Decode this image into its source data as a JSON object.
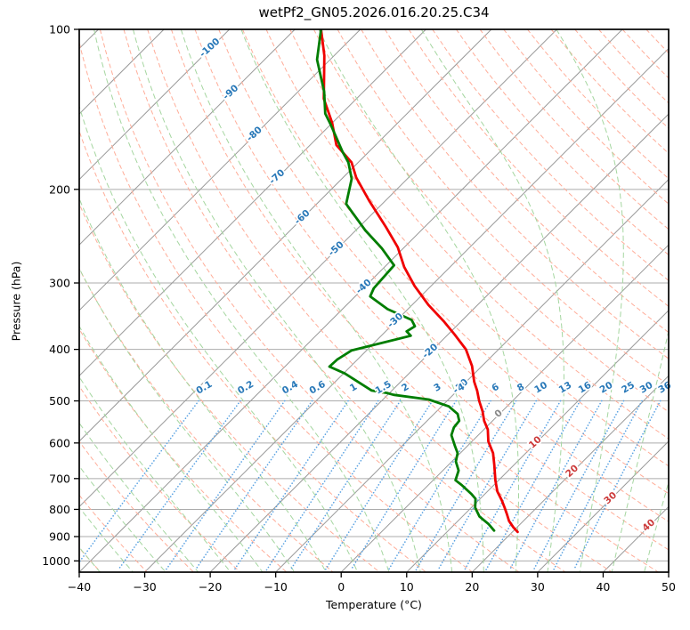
{
  "title": "wetPf2_GN05.2026.016.20.25.C34",
  "axes": {
    "xlabel": "Temperature (°C)",
    "ylabel": "Pressure (hPa)",
    "x_ticks": [
      {
        "value": -40,
        "label": "−40"
      },
      {
        "value": -30,
        "label": "−30"
      },
      {
        "value": -20,
        "label": "−20"
      },
      {
        "value": -10,
        "label": "−10"
      },
      {
        "value": 0,
        "label": "0"
      },
      {
        "value": 10,
        "label": "10"
      },
      {
        "value": 20,
        "label": "20"
      },
      {
        "value": 30,
        "label": "30"
      },
      {
        "value": 40,
        "label": "40"
      },
      {
        "value": 50,
        "label": "50"
      }
    ],
    "y_ticks": [
      {
        "value": 100,
        "label": "100"
      },
      {
        "value": 200,
        "label": "200"
      },
      {
        "value": 300,
        "label": "300"
      },
      {
        "value": 400,
        "label": "400"
      },
      {
        "value": 500,
        "label": "500"
      },
      {
        "value": 600,
        "label": "600"
      },
      {
        "value": 700,
        "label": "700"
      },
      {
        "value": 800,
        "label": "800"
      },
      {
        "value": 900,
        "label": "900"
      },
      {
        "value": 1000,
        "label": "1000"
      }
    ]
  },
  "chart_data": {
    "type": "line",
    "subtype": "skewT-logP-sounding",
    "title": "wetPf2_GN05.2026.016.20.25.C34",
    "xlabel": "Temperature (°C)",
    "ylabel": "Pressure (hPa)",
    "xlim": [
      -40,
      50
    ],
    "pressure_range": [
      100,
      1050
    ],
    "skew": "45deg",
    "grid": true,
    "series": [
      {
        "name": "temperature",
        "color": "#f00000",
        "points": [
          [
            100,
            -86
          ],
          [
            112,
            -81.5
          ],
          [
            135,
            -75
          ],
          [
            150,
            -70
          ],
          [
            165,
            -66
          ],
          [
            178,
            -61
          ],
          [
            190,
            -58
          ],
          [
            210,
            -52.5
          ],
          [
            235,
            -46
          ],
          [
            257,
            -41
          ],
          [
            280,
            -37
          ],
          [
            304,
            -32.5
          ],
          [
            330,
            -27.5
          ],
          [
            355,
            -22.5
          ],
          [
            375,
            -19
          ],
          [
            400,
            -15
          ],
          [
            430,
            -11.5
          ],
          [
            460,
            -8.8
          ],
          [
            478,
            -7
          ],
          [
            500,
            -5.1
          ],
          [
            523,
            -3
          ],
          [
            545,
            -1.3
          ],
          [
            566,
            0.6
          ],
          [
            596,
            2.5
          ],
          [
            627,
            5
          ],
          [
            660,
            7
          ],
          [
            705,
            9.5
          ],
          [
            740,
            11.5
          ],
          [
            770,
            13.6
          ],
          [
            794,
            15.1
          ],
          [
            816,
            16.4
          ],
          [
            841,
            17.8
          ],
          [
            864,
            19.4
          ],
          [
            882,
            20.8
          ]
        ]
      },
      {
        "name": "dewpoint",
        "color": "#007d00",
        "points": [
          [
            100,
            -86
          ],
          [
            114,
            -82
          ],
          [
            131,
            -76
          ],
          [
            144,
            -72.5
          ],
          [
            151,
            -70
          ],
          [
            170,
            -64
          ],
          [
            178,
            -61.5
          ],
          [
            191,
            -58.5
          ],
          [
            213,
            -55.5
          ],
          [
            239,
            -48.5
          ],
          [
            258,
            -43.3
          ],
          [
            278,
            -38.8
          ],
          [
            307,
            -38.4
          ],
          [
            318,
            -37.7
          ],
          [
            336,
            -33.1
          ],
          [
            352,
            -27.8
          ],
          [
            362,
            -26.3
          ],
          [
            370,
            -26.8
          ],
          [
            377,
            -25.5
          ],
          [
            402,
            -32.3
          ],
          [
            418,
            -33.1
          ],
          [
            431,
            -33.2
          ],
          [
            444,
            -29.8
          ],
          [
            478,
            -23.1
          ],
          [
            483,
            -20.4
          ],
          [
            487,
            -19.1
          ],
          [
            497,
            -13
          ],
          [
            512,
            -8.9
          ],
          [
            529,
            -6.4
          ],
          [
            545,
            -5.1
          ],
          [
            561,
            -4.9
          ],
          [
            580,
            -4.1
          ],
          [
            608,
            -1.9
          ],
          [
            627,
            -0.4
          ],
          [
            650,
            0.6
          ],
          [
            676,
            2.4
          ],
          [
            705,
            3.4
          ],
          [
            720,
            5.1
          ],
          [
            749,
            8
          ],
          [
            764,
            9.3
          ],
          [
            794,
            10.6
          ],
          [
            825,
            12.6
          ],
          [
            853,
            15.2
          ],
          [
            877,
            17
          ]
        ]
      }
    ],
    "background": {
      "pressure_gridlines": {
        "min": 100,
        "max": 1000,
        "step": 100,
        "color": "#ababab"
      },
      "isotherms": {
        "min": -130,
        "max": 50,
        "step": 10,
        "color": "#999999",
        "labels": [
          {
            "value": -100,
            "label": "-100",
            "p": 108,
            "color": "#2878b8"
          },
          {
            "value": -90,
            "label": "-90",
            "p": 131,
            "color": "#2878b8"
          },
          {
            "value": -80,
            "label": "-80",
            "p": 157,
            "color": "#2878b8"
          },
          {
            "value": -70,
            "label": "-70",
            "p": 189,
            "color": "#2878b8"
          },
          {
            "value": -60,
            "label": "-60",
            "p": 225,
            "color": "#2878b8"
          },
          {
            "value": -50,
            "label": "-50",
            "p": 258,
            "color": "#2878b8"
          },
          {
            "value": -40,
            "label": "-40",
            "p": 304,
            "color": "#2878b8"
          },
          {
            "value": -30,
            "label": "-30",
            "p": 352,
            "color": "#2878b8"
          },
          {
            "value": -20,
            "label": "-20",
            "p": 402,
            "color": "#2878b8"
          },
          {
            "value": -10,
            "label": "-10",
            "p": 468,
            "color": "#2878b8"
          },
          {
            "value": 0,
            "label": "0",
            "p": 527,
            "color": "#888888"
          },
          {
            "value": 10,
            "label": "10",
            "p": 597,
            "color": "#cc3a3a"
          },
          {
            "value": 20,
            "label": "20",
            "p": 676,
            "color": "#cc3a3a"
          },
          {
            "value": 30,
            "label": "30",
            "p": 760,
            "color": "#cc3a3a"
          },
          {
            "value": 40,
            "label": "40",
            "p": 855,
            "color": "#cc3a3a"
          }
        ]
      },
      "dry_adiabats": {
        "min": -40,
        "max": 199,
        "step": 7,
        "color": "#ffad99"
      },
      "moist_adiabats": {
        "min": -40,
        "max": 45,
        "step": 5,
        "color": "#a5d6a0"
      },
      "mixing_ratio_lines": {
        "values": [
          0.1,
          0.2,
          0.4,
          0.6,
          1,
          1.5,
          2,
          3,
          4,
          6,
          8,
          10,
          13,
          16,
          20,
          25,
          30,
          36
        ],
        "labels": [
          "0.1",
          "0.2",
          "0.4",
          "0.6",
          "1",
          "1.5",
          "2",
          "3",
          "4",
          "6",
          "8",
          "10",
          "13",
          "16",
          "20",
          "25",
          "30",
          "36"
        ],
        "p_top": 500,
        "label_p": 477,
        "color": "#5aa2e2",
        "label_color": "#2878b8"
      }
    }
  }
}
